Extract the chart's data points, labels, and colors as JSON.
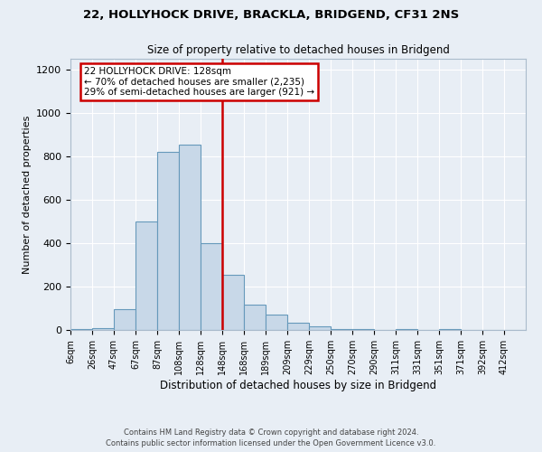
{
  "title": "22, HOLLYHOCK DRIVE, BRACKLA, BRIDGEND, CF31 2NS",
  "subtitle": "Size of property relative to detached houses in Bridgend",
  "xlabel": "Distribution of detached houses by size in Bridgend",
  "ylabel": "Number of detached properties",
  "bar_color": "#c8d8e8",
  "bar_edge_color": "#6699bb",
  "background_color": "#e8eef5",
  "bin_labels": [
    "6sqm",
    "26sqm",
    "47sqm",
    "67sqm",
    "87sqm",
    "108sqm",
    "128sqm",
    "148sqm",
    "168sqm",
    "189sqm",
    "209sqm",
    "229sqm",
    "250sqm",
    "270sqm",
    "290sqm",
    "311sqm",
    "331sqm",
    "351sqm",
    "371sqm",
    "392sqm",
    "412sqm"
  ],
  "bar_heights": [
    5,
    10,
    95,
    500,
    820,
    855,
    400,
    255,
    115,
    70,
    35,
    15,
    3,
    3,
    0,
    3,
    0,
    3,
    0,
    0,
    0
  ],
  "vline_index": 6,
  "marker_label": "22 HOLLYHOCK DRIVE: 128sqm",
  "annotation_line1": "← 70% of detached houses are smaller (2,235)",
  "annotation_line2": "29% of semi-detached houses are larger (921) →",
  "vline_color": "#cc0000",
  "annotation_box_edgecolor": "#cc0000",
  "ylim": [
    0,
    1250
  ],
  "yticks": [
    0,
    200,
    400,
    600,
    800,
    1000,
    1200
  ],
  "footer1": "Contains HM Land Registry data © Crown copyright and database right 2024.",
  "footer2": "Contains public sector information licensed under the Open Government Licence v3.0."
}
